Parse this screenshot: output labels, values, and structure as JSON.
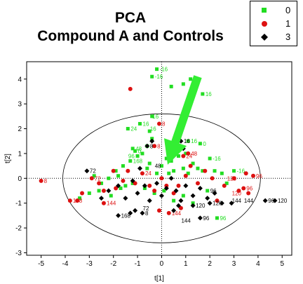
{
  "chart_data": {
    "type": "scatter",
    "title_line1": "PCA",
    "title_line2": "Compound A and Controls",
    "xlabel": "t[1]",
    "ylabel": "t[2]",
    "xlim": [
      -5.6,
      5.4
    ],
    "ylim": [
      -3.1,
      4.7
    ],
    "xticks": [
      -5,
      -4,
      -3,
      -2,
      -1,
      0,
      1,
      2,
      3,
      4,
      5
    ],
    "yticks": [
      -3,
      -2,
      -1,
      0,
      1,
      2,
      3,
      4
    ],
    "grid": false,
    "legend_position": "top-right",
    "ellipse": {
      "cx": 0,
      "cy": 0,
      "rx": 4.1,
      "ry": 2.6
    },
    "arrow": {
      "from": [
        1.5,
        4.1
      ],
      "to": [
        0.25,
        0.55
      ],
      "color": "#33ee33"
    },
    "series": [
      {
        "name": "0",
        "color": "#22dd22",
        "marker": "square",
        "points": [
          [
            -2.8,
            0.1
          ],
          [
            -2.5,
            -0.2
          ],
          [
            -2.2,
            0.0
          ],
          [
            -1.9,
            0.3
          ],
          [
            -1.6,
            0.5
          ],
          [
            -1.5,
            -0.3
          ],
          [
            -1.3,
            0.7
          ],
          [
            -1.2,
            1.2
          ],
          [
            -1.0,
            0.9
          ],
          [
            -0.8,
            1.0
          ],
          [
            -0.6,
            0.4
          ],
          [
            -0.5,
            0.6
          ],
          [
            -0.2,
            0.2
          ],
          [
            0.0,
            0.5
          ],
          [
            0.2,
            0.8
          ],
          [
            0.3,
            0.2
          ],
          [
            0.4,
            0.7
          ],
          [
            0.5,
            0.3
          ],
          [
            0.7,
            0.9
          ],
          [
            0.9,
            0.4
          ],
          [
            1.0,
            1.0
          ],
          [
            1.1,
            0.2
          ],
          [
            1.3,
            0.6
          ],
          [
            1.5,
            0.4
          ],
          [
            1.7,
            0.3
          ],
          [
            2.0,
            0.8
          ],
          [
            2.2,
            0.3
          ],
          [
            2.5,
            0.2
          ],
          [
            2.7,
            -0.2
          ],
          [
            3.0,
            0.3
          ],
          [
            -3.4,
            -0.8
          ],
          [
            -3.0,
            -0.6
          ],
          [
            -2.6,
            -0.5
          ],
          [
            -2.1,
            -0.7
          ],
          [
            -1.7,
            -0.4
          ],
          [
            -1.2,
            -0.2
          ],
          [
            -0.7,
            -0.4
          ],
          [
            -0.3,
            -0.6
          ],
          [
            0.1,
            -0.5
          ],
          [
            0.5,
            -0.9
          ],
          [
            0.9,
            -0.7
          ],
          [
            1.3,
            -1.0
          ],
          [
            1.9,
            -0.5
          ],
          [
            2.3,
            -1.6
          ],
          [
            -1.8,
            0.1
          ],
          [
            -1.4,
            2.0
          ],
          [
            -0.6,
            1.3
          ],
          [
            -0.5,
            1.9
          ],
          [
            -0.4,
            2.5
          ],
          [
            0.4,
            3.7
          ],
          [
            0.9,
            3.8
          ],
          [
            1.2,
            4.0
          ],
          [
            -0.2,
            4.4
          ],
          [
            -0.4,
            4.1
          ],
          [
            1.7,
            3.4
          ],
          [
            -1.1,
            1.1
          ],
          [
            -0.4,
            1.6
          ],
          [
            1.1,
            1.5
          ],
          [
            1.6,
            1.4
          ],
          [
            -0.9,
            2.2
          ]
        ],
        "labels": [
          {
            "x": -0.2,
            "y": 4.4,
            "text": "-16"
          },
          {
            "x": -0.4,
            "y": 4.1,
            "text": "-16"
          },
          {
            "x": 1.2,
            "y": 4.0,
            "text": "16"
          },
          {
            "x": 1.7,
            "y": 3.4,
            "text": "16"
          },
          {
            "x": -0.5,
            "y": 2.5,
            "text": "16"
          },
          {
            "x": -0.6,
            "y": 2.0,
            "text": "16"
          },
          {
            "x": -0.9,
            "y": 2.2,
            "text": "16"
          },
          {
            "x": -1.4,
            "y": 2.0,
            "text": "24"
          },
          {
            "x": -1.1,
            "y": 1.1,
            "text": "0"
          },
          {
            "x": -1.2,
            "y": 1.2,
            "text": "48"
          },
          {
            "x": -1.5,
            "y": 0.9,
            "text": "96"
          },
          {
            "x": -1.3,
            "y": 0.7,
            "text": "168"
          },
          {
            "x": 1.1,
            "y": 1.5,
            "text": "16"
          },
          {
            "x": 1.6,
            "y": 1.4,
            "text": "0"
          },
          {
            "x": 2.0,
            "y": 0.8,
            "text": "-16"
          },
          {
            "x": 3.0,
            "y": 0.3,
            "text": "-16"
          },
          {
            "x": 2.3,
            "y": -1.6,
            "text": "96"
          }
        ]
      },
      {
        "name": "1",
        "color": "#dd1111",
        "marker": "circle",
        "points": [
          [
            -5.0,
            -0.1
          ],
          [
            -3.8,
            -0.9
          ],
          [
            -3.5,
            -0.9
          ],
          [
            -3.3,
            -0.6
          ],
          [
            -2.9,
            0.0
          ],
          [
            -2.6,
            -0.2
          ],
          [
            -2.4,
            -0.5
          ],
          [
            -2.0,
            0.3
          ],
          [
            -1.9,
            -0.4
          ],
          [
            -1.6,
            -0.1
          ],
          [
            -1.4,
            0.3
          ],
          [
            -1.1,
            -0.2
          ],
          [
            -0.8,
            0.2
          ],
          [
            -0.5,
            -0.3
          ],
          [
            -0.3,
            -0.5
          ],
          [
            0.0,
            0.0
          ],
          [
            0.2,
            -0.3
          ],
          [
            0.5,
            -0.6
          ],
          [
            0.7,
            -0.3
          ],
          [
            1.0,
            0.1
          ],
          [
            1.2,
            0.5
          ],
          [
            1.5,
            -0.2
          ],
          [
            1.8,
            0.3
          ],
          [
            2.1,
            0.0
          ],
          [
            2.6,
            -0.3
          ],
          [
            3.0,
            0.0
          ],
          [
            3.2,
            -0.5
          ],
          [
            3.5,
            0.2
          ],
          [
            3.6,
            -0.6
          ],
          [
            -0.3,
            1.3
          ],
          [
            -0.1,
            2.2
          ],
          [
            1.1,
            1.0
          ],
          [
            0.9,
            0.9
          ],
          [
            -1.3,
            3.6
          ],
          [
            0.3,
            -1.4
          ],
          [
            -0.1,
            -1.3
          ],
          [
            0.8,
            -1.2
          ],
          [
            2.3,
            -0.9
          ],
          [
            -2.4,
            -1.0
          ],
          [
            3.8,
            0.1
          ],
          [
            3.4,
            -0.4
          ]
        ],
        "labels": [
          {
            "x": -5.0,
            "y": -0.1,
            "text": "8"
          },
          {
            "x": -3.8,
            "y": -0.9,
            "text": "168"
          },
          {
            "x": -2.4,
            "y": -1.0,
            "text": "144"
          },
          {
            "x": -2.9,
            "y": 0.0,
            "text": "72"
          },
          {
            "x": -0.1,
            "y": 2.2,
            "text": "8"
          },
          {
            "x": -0.3,
            "y": 1.3,
            "text": "8"
          },
          {
            "x": 1.1,
            "y": 1.0,
            "text": "48"
          },
          {
            "x": 0.9,
            "y": 0.9,
            "text": "24"
          },
          {
            "x": -0.8,
            "y": 0.2,
            "text": "24"
          },
          {
            "x": 0.3,
            "y": -1.4,
            "text": "144"
          },
          {
            "x": 3.8,
            "y": 0.1,
            "text": "96"
          },
          {
            "x": 3.4,
            "y": -0.4,
            "text": "96"
          },
          {
            "x": 2.8,
            "y": -0.6,
            "text": "120"
          },
          {
            "x": 2.6,
            "y": 0.0,
            "text": "120"
          }
        ]
      },
      {
        "name": "3",
        "color": "#000000",
        "marker": "diamond",
        "points": [
          [
            -3.1,
            0.3
          ],
          [
            -2.2,
            -0.5
          ],
          [
            -1.8,
            -0.3
          ],
          [
            -1.5,
            -0.8
          ],
          [
            -1.2,
            -0.1
          ],
          [
            -1.0,
            -0.6
          ],
          [
            -0.7,
            -0.3
          ],
          [
            -0.5,
            -0.9
          ],
          [
            -0.2,
            -0.2
          ],
          [
            0.0,
            -0.7
          ],
          [
            0.2,
            -0.4
          ],
          [
            0.4,
            0.0
          ],
          [
            0.6,
            -0.5
          ],
          [
            0.8,
            -0.9
          ],
          [
            1.0,
            -0.3
          ],
          [
            1.3,
            -0.7
          ],
          [
            1.6,
            -0.4
          ],
          [
            1.9,
            -0.8
          ],
          [
            2.2,
            -0.6
          ],
          [
            2.5,
            -1.0
          ],
          [
            -1.1,
            -1.3
          ],
          [
            -0.8,
            -1.4
          ],
          [
            -1.3,
            -1.4
          ],
          [
            0.5,
            -1.3
          ],
          [
            0.7,
            -1.1
          ],
          [
            1.6,
            -1.6
          ],
          [
            4.7,
            -0.9
          ],
          [
            4.3,
            -0.9
          ],
          [
            2.9,
            -1.0
          ],
          [
            -1.8,
            -1.5
          ],
          [
            -0.9,
            0.4
          ],
          [
            0.8,
            1.5
          ],
          [
            -0.6,
            1.3
          ],
          [
            0.9,
            1.2
          ],
          [
            -0.4,
            1.5
          ],
          [
            1.3,
            -1.1
          ],
          [
            2.0,
            -1.0
          ],
          [
            -2.5,
            -0.8
          ]
        ],
        "labels": [
          {
            "x": -3.1,
            "y": 0.3,
            "text": "72"
          },
          {
            "x": -1.8,
            "y": -1.5,
            "text": "168"
          },
          {
            "x": -0.9,
            "y": -1.2,
            "text": "72"
          },
          {
            "x": -0.8,
            "y": -1.4,
            "text": "8"
          },
          {
            "x": -0.6,
            "y": 1.3,
            "text": "8"
          },
          {
            "x": 0.8,
            "y": 1.5,
            "text": "16"
          },
          {
            "x": -0.4,
            "y": 0.5,
            "text": "48"
          },
          {
            "x": 1.6,
            "y": -1.6,
            "text": "96"
          },
          {
            "x": 0.7,
            "y": -1.7,
            "text": "144"
          },
          {
            "x": 1.3,
            "y": -1.1,
            "text": "120"
          },
          {
            "x": 2.0,
            "y": -1.0,
            "text": "120"
          },
          {
            "x": 2.8,
            "y": -0.9,
            "text": "144"
          },
          {
            "x": 3.3,
            "y": -0.9,
            "text": "144"
          },
          {
            "x": 4.3,
            "y": -0.9,
            "text": "96"
          },
          {
            "x": 4.7,
            "y": -0.9,
            "text": "120"
          },
          {
            "x": 1.9,
            "y": -0.5,
            "text": "96"
          }
        ]
      }
    ]
  },
  "legend": {
    "items": [
      {
        "label": "0",
        "color": "#22dd22",
        "marker": "square"
      },
      {
        "label": "1",
        "color": "#dd1111",
        "marker": "circle"
      },
      {
        "label": "3",
        "color": "#000000",
        "marker": "diamond"
      }
    ]
  }
}
